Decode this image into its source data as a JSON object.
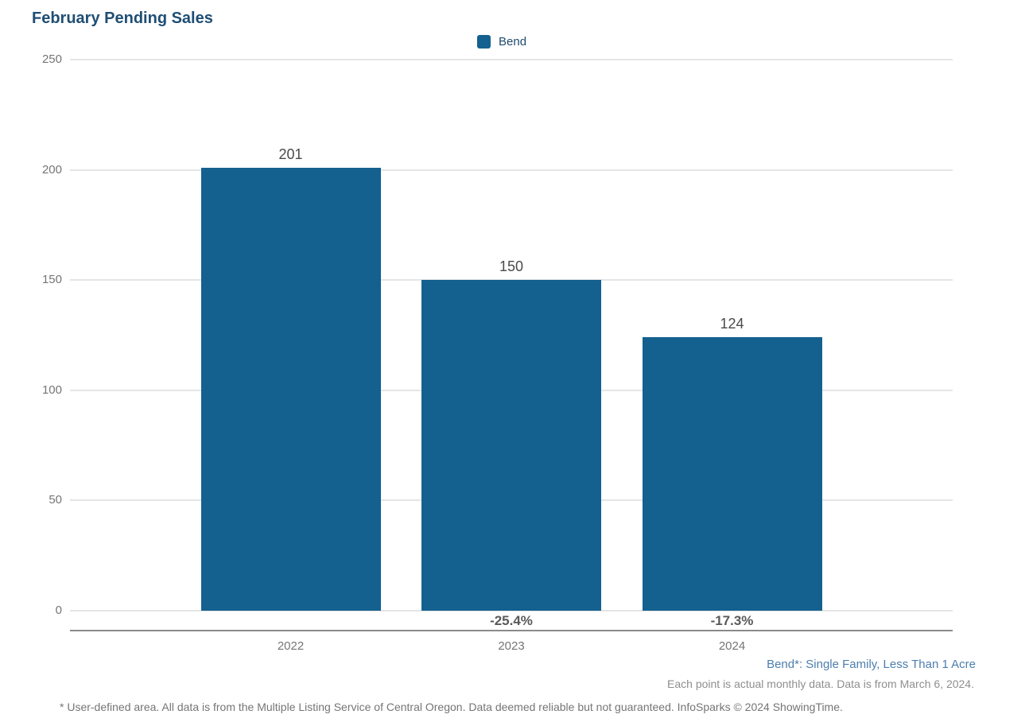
{
  "page": {
    "title": "February Pending Sales"
  },
  "legend": {
    "items": [
      {
        "label": "Bend",
        "color": "#14608F"
      }
    ]
  },
  "chart_data": {
    "type": "bar",
    "title": "February Pending Sales",
    "categories": [
      "2022",
      "2023",
      "2024"
    ],
    "series": [
      {
        "name": "Bend",
        "color": "#14608F",
        "values": [
          201,
          150,
          124
        ],
        "value_labels": [
          "201",
          "150",
          "124"
        ],
        "pct_change_labels": [
          "",
          "-25.4%",
          "-17.3%"
        ]
      }
    ],
    "xlabel": "",
    "ylabel": "",
    "ylim": [
      0,
      250
    ],
    "yticks": [
      0,
      50,
      100,
      150,
      200,
      250
    ],
    "grid": true,
    "legend_position": "top-center"
  },
  "footnotes": {
    "series_definition": "Bend*: Single Family, Less Than 1 Acre",
    "data_note": "Each point is actual monthly data. Data is from March 6, 2024.",
    "disclaimer": "* User-defined area. All data is from the Multiple Listing Service of Central Oregon. Data deemed reliable but not guaranteed. InfoSparks © 2024 ShowingTime."
  },
  "colors": {
    "bar": "#14608F",
    "title_text": "#1F4E74",
    "legend_text": "#1F4A6E",
    "tick_text": "#757575",
    "value_text": "#4A4A4A",
    "pct_text": "#595959",
    "gridline": "#E5E5E5",
    "axis_line": "#8A8A8A",
    "series_footnote_text": "#4D7EAE"
  }
}
